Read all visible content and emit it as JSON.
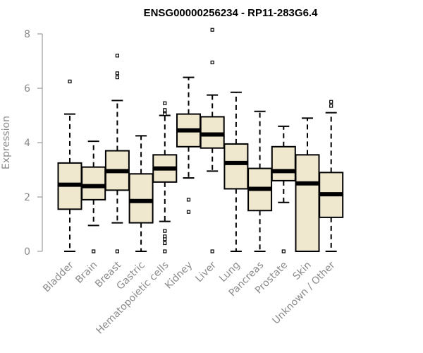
{
  "chart_data": {
    "type": "boxplot",
    "title": "ENSG00000256234 - RP11-283G6.4",
    "ylabel": "Expression",
    "ylim": [
      0,
      8
    ],
    "yticks": [
      0,
      2,
      4,
      6,
      8
    ],
    "box_fill": "#efe8cf",
    "categories": [
      "Bladder",
      "Brain",
      "Breast",
      "Gastric",
      "Hematopoietic cells",
      "Kidney",
      "Liver",
      "Lung",
      "Pancreas",
      "Prostate",
      "Skin",
      "Unknown / Other"
    ],
    "boxes": [
      {
        "whislo": 0.0,
        "q1": 1.55,
        "med": 2.45,
        "q3": 3.25,
        "whishi": 5.05,
        "fliers": [
          6.25
        ]
      },
      {
        "whislo": 0.95,
        "q1": 1.9,
        "med": 2.4,
        "q3": 3.1,
        "whishi": 4.05,
        "fliers": [
          0.0
        ]
      },
      {
        "whislo": 1.05,
        "q1": 2.25,
        "med": 2.95,
        "q3": 3.7,
        "whishi": 5.55,
        "fliers": [
          0.0,
          6.4,
          6.55,
          7.2
        ]
      },
      {
        "whislo": 0.0,
        "q1": 1.05,
        "med": 1.85,
        "q3": 2.85,
        "whishi": 4.25,
        "fliers": []
      },
      {
        "whislo": 1.1,
        "q1": 2.55,
        "med": 3.05,
        "q3": 3.55,
        "whishi": 5.0,
        "fliers": [
          0.0,
          0.3,
          0.45,
          0.55,
          0.75,
          5.05,
          5.15,
          5.2,
          5.45
        ]
      },
      {
        "whislo": 2.7,
        "q1": 3.85,
        "med": 4.45,
        "q3": 5.05,
        "whishi": 6.4,
        "fliers": [
          1.45,
          1.9
        ]
      },
      {
        "whislo": 2.95,
        "q1": 3.8,
        "med": 4.3,
        "q3": 4.95,
        "whishi": 5.75,
        "fliers": [
          0.0,
          6.95,
          8.15
        ]
      },
      {
        "whislo": 0.0,
        "q1": 2.3,
        "med": 3.25,
        "q3": 3.95,
        "whishi": 5.85,
        "fliers": []
      },
      {
        "whislo": 0.0,
        "q1": 1.5,
        "med": 2.3,
        "q3": 3.05,
        "whishi": 5.15,
        "fliers": []
      },
      {
        "whislo": 1.8,
        "q1": 2.6,
        "med": 2.95,
        "q3": 3.85,
        "whishi": 4.6,
        "fliers": [
          0.0
        ]
      },
      {
        "whislo": 0.0,
        "q1": 0.0,
        "med": 2.5,
        "q3": 3.55,
        "whishi": 4.9,
        "fliers": []
      },
      {
        "whislo": 0.0,
        "q1": 1.25,
        "med": 2.1,
        "q3": 2.9,
        "whishi": 5.1,
        "fliers": [
          5.35,
          5.5
        ]
      }
    ]
  }
}
